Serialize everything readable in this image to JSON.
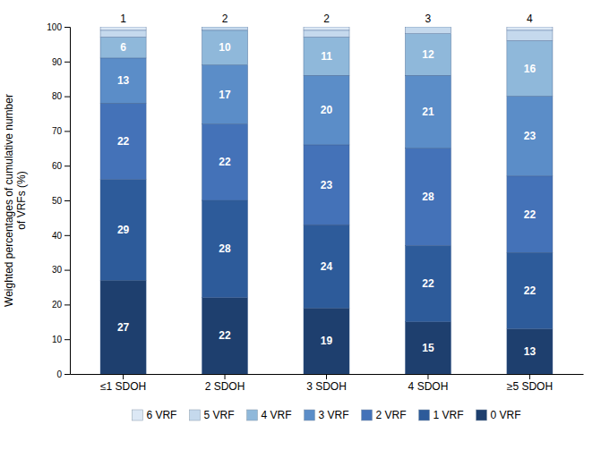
{
  "chart_data": {
    "type": "bar",
    "stacked": true,
    "grid": false,
    "data_labels": true,
    "categories": [
      "≤1 SDOH",
      "2 SDOH",
      "3 SDOH",
      "4 SDOH",
      "≥5 SDOH"
    ],
    "series": [
      {
        "name": "0 VRF",
        "color": "#1e3f6e",
        "values": [
          27,
          22,
          19,
          15,
          13
        ]
      },
      {
        "name": "1 VRF",
        "color": "#2d5b9a",
        "values": [
          29,
          28,
          24,
          22,
          22
        ]
      },
      {
        "name": "2 VRF",
        "color": "#4472b8",
        "values": [
          22,
          22,
          23,
          28,
          22
        ]
      },
      {
        "name": "3 VRF",
        "color": "#5b8dc8",
        "values": [
          13,
          17,
          20,
          21,
          23
        ]
      },
      {
        "name": "4 VRF",
        "color": "#8fb8da",
        "values": [
          6,
          10,
          11,
          12,
          16
        ]
      },
      {
        "name": "5 VRF",
        "color": "#c5d9ed",
        "values": [
          2,
          1,
          2,
          2,
          3
        ],
        "data_labels": false
      },
      {
        "name": "6 VRF",
        "color": "#dce8f5",
        "values": [
          1,
          0,
          1,
          0,
          1
        ],
        "data_labels": false
      }
    ],
    "annotations": [
      "1",
      "2",
      "2",
      "3",
      "4"
    ],
    "ylabel": "Weighted percentages of cumulative number\nof VRFs (%)",
    "ylim": [
      0,
      100
    ],
    "yticks": [
      0,
      10,
      20,
      30,
      40,
      50,
      60,
      70,
      80,
      90,
      100
    ]
  }
}
